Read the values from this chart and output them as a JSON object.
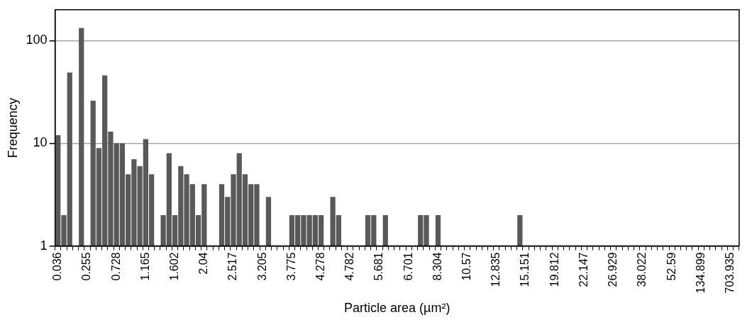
{
  "chart_data": {
    "type": "bar",
    "xlabel": "Particle area (µm²)",
    "ylabel": "Frequency",
    "log": "y",
    "grid": "y",
    "legend": false,
    "color": "#595959",
    "ylim": [
      1,
      200
    ],
    "yticks": [
      1,
      10,
      100
    ],
    "categories": [
      "0.036",
      null,
      null,
      null,
      null,
      "0.255",
      null,
      null,
      null,
      null,
      "0.728",
      null,
      null,
      null,
      null,
      "1.165",
      null,
      null,
      null,
      null,
      "1.602",
      null,
      null,
      null,
      null,
      "2.04",
      null,
      null,
      null,
      null,
      "2.517",
      null,
      null,
      null,
      null,
      "3.205",
      null,
      null,
      null,
      null,
      "3.775",
      null,
      null,
      null,
      null,
      "4.278",
      null,
      null,
      null,
      null,
      "4.782",
      null,
      null,
      null,
      null,
      "5.681",
      null,
      null,
      null,
      null,
      "6.701",
      null,
      null,
      null,
      null,
      "8.304",
      null,
      null,
      null,
      null,
      "10.57",
      null,
      null,
      null,
      null,
      "12.835",
      null,
      null,
      null,
      null,
      "15.151",
      null,
      null,
      null,
      null,
      "19.812",
      null,
      null,
      null,
      null,
      "22.147",
      null,
      null,
      null,
      null,
      "26.929",
      null,
      null,
      null,
      null,
      "38.022",
      null,
      null,
      null,
      null,
      "52.59",
      null,
      null,
      null,
      null,
      "134.899",
      null,
      null,
      null,
      null,
      "703.935",
      null
    ],
    "values": [
      12,
      2,
      49,
      null,
      133,
      null,
      26,
      9,
      46,
      13,
      10,
      10,
      5,
      7,
      6,
      11,
      5,
      null,
      2,
      8,
      2,
      6,
      5,
      4,
      2,
      4,
      null,
      null,
      4,
      3,
      5,
      8,
      5,
      4,
      4,
      null,
      3,
      null,
      null,
      null,
      2,
      2,
      2,
      2,
      2,
      2,
      null,
      3,
      2,
      null,
      null,
      null,
      null,
      2,
      2,
      null,
      2,
      null,
      null,
      null,
      null,
      null,
      2,
      2,
      null,
      2,
      null,
      null,
      null,
      null,
      null,
      null,
      null,
      null,
      null,
      null,
      null,
      null,
      null,
      2,
      null,
      null,
      null,
      null,
      null,
      null,
      null,
      null,
      null,
      null,
      null,
      null,
      null,
      null,
      null,
      null,
      null,
      null,
      null,
      null,
      null,
      null,
      null,
      null,
      null,
      null,
      null,
      null,
      null,
      null,
      null,
      null,
      null,
      null,
      null,
      null,
      null
    ]
  }
}
